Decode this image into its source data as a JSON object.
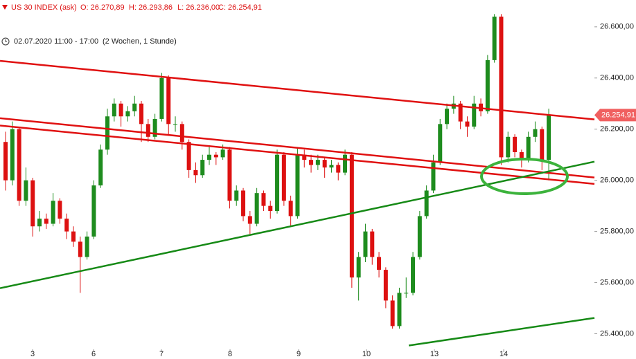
{
  "chart_data": {
    "type": "candlestick",
    "header": {
      "symbol": "US 30 INDEX (ask)",
      "open": "O: 26.270,89",
      "high": "H: 26.293,86",
      "low": "L: 26.236,00",
      "close": "C: 26.254,91"
    },
    "period": "02.07.2020 11:00 - 17:00",
    "range": "(2 Wochen, 1 Stunde)",
    "up_color": "#1e8c1e",
    "down_color": "#dd1111",
    "xlim": [
      -0.82,
      86.73
    ],
    "ylim": [
      25350,
      26705
    ],
    "xticks": [
      {
        "value": 3.98,
        "label": "3"
      },
      {
        "value": 12.96,
        "label": "6"
      },
      {
        "value": 22.96,
        "label": "7"
      },
      {
        "value": 33.06,
        "label": "8"
      },
      {
        "value": 43.16,
        "label": "9"
      },
      {
        "value": 53.16,
        "label": "10"
      },
      {
        "value": 63.16,
        "label": "13"
      },
      {
        "value": 73.37,
        "label": "14"
      }
    ],
    "yticks": [
      {
        "value": 26600,
        "label": "26.600,00"
      },
      {
        "value": 26400,
        "label": "26.400,00"
      },
      {
        "value": 26200,
        "label": "26.200,00"
      },
      {
        "value": 26000,
        "label": "26.000,00"
      },
      {
        "value": 25800,
        "label": "25.800,00"
      },
      {
        "value": 25600,
        "label": "25.600,00"
      },
      {
        "value": 25400,
        "label": "25.400,00"
      }
    ],
    "last_price": {
      "value": 26254.91,
      "label": "26.254,91"
    },
    "candles": [
      [
        26150,
        26190,
        25960,
        26000
      ],
      [
        26000,
        26230,
        25980,
        26200
      ],
      [
        26200,
        26210,
        25900,
        25920
      ],
      [
        25920,
        26050,
        25900,
        26000
      ],
      [
        26000,
        26010,
        25780,
        25820
      ],
      [
        25820,
        25880,
        25800,
        25850
      ],
      [
        25850,
        25870,
        25810,
        25830
      ],
      [
        25830,
        25950,
        25820,
        25920
      ],
      [
        25920,
        25930,
        25830,
        25850
      ],
      [
        25850,
        25870,
        25770,
        25800
      ],
      [
        25800,
        25820,
        25740,
        25760
      ],
      [
        25760,
        25780,
        25560,
        25700
      ],
      [
        25700,
        25800,
        25690,
        25780
      ],
      [
        25780,
        26000,
        25770,
        25980
      ],
      [
        25980,
        26140,
        25970,
        26120
      ],
      [
        26120,
        26280,
        26100,
        26250
      ],
      [
        26250,
        26320,
        26230,
        26300
      ],
      [
        26300,
        26310,
        26210,
        26250
      ],
      [
        26250,
        26290,
        26230,
        26270
      ],
      [
        26270,
        26330,
        26250,
        26300
      ],
      [
        26300,
        26310,
        26150,
        26220
      ],
      [
        26220,
        26240,
        26150,
        26170
      ],
      [
        26170,
        26260,
        26160,
        26240
      ],
      [
        26240,
        26420,
        26230,
        26400
      ],
      [
        26400,
        26410,
        26180,
        26220
      ],
      [
        26220,
        26250,
        26190,
        26220
      ],
      [
        26220,
        26230,
        26120,
        26150
      ],
      [
        26150,
        26160,
        26010,
        26040
      ],
      [
        26040,
        26070,
        25990,
        26020
      ],
      [
        26020,
        26100,
        26010,
        26080
      ],
      [
        26080,
        26130,
        26060,
        26100
      ],
      [
        26100,
        26110,
        26060,
        26090
      ],
      [
        26090,
        26140,
        26080,
        26120
      ],
      [
        26120,
        26130,
        25890,
        25920
      ],
      [
        25920,
        25980,
        25900,
        25960
      ],
      [
        25960,
        25970,
        25840,
        25860
      ],
      [
        25860,
        25880,
        25790,
        25830
      ],
      [
        25830,
        25970,
        25820,
        25950
      ],
      [
        25950,
        25960,
        25880,
        25900
      ],
      [
        25900,
        25920,
        25850,
        25880
      ],
      [
        25880,
        26120,
        25870,
        26100
      ],
      [
        26100,
        26110,
        25900,
        25920
      ],
      [
        25920,
        25940,
        25820,
        25860
      ],
      [
        25860,
        26130,
        25850,
        26100
      ],
      [
        26100,
        26120,
        26050,
        26080
      ],
      [
        26080,
        26100,
        26030,
        26060
      ],
      [
        26060,
        26100,
        26040,
        26080
      ],
      [
        26080,
        26090,
        26010,
        26050
      ],
      [
        26050,
        26080,
        26030,
        26060
      ],
      [
        26060,
        26070,
        26000,
        26030
      ],
      [
        26030,
        26120,
        26020,
        26100
      ],
      [
        26100,
        26110,
        25580,
        25620
      ],
      [
        25620,
        25720,
        25530,
        25700
      ],
      [
        25700,
        25830,
        25680,
        25800
      ],
      [
        25800,
        25810,
        25670,
        25700
      ],
      [
        25700,
        25720,
        25620,
        25650
      ],
      [
        25650,
        25660,
        25500,
        25530
      ],
      [
        25530,
        25550,
        25420,
        25430
      ],
      [
        25430,
        25580,
        25420,
        25560
      ],
      [
        25560,
        25620,
        25540,
        25560
      ],
      [
        25560,
        25720,
        25550,
        25700
      ],
      [
        25700,
        25880,
        25690,
        25860
      ],
      [
        25860,
        25980,
        25850,
        25960
      ],
      [
        25960,
        26100,
        25950,
        26070
      ],
      [
        26070,
        26240,
        26060,
        26220
      ],
      [
        26220,
        26300,
        26200,
        26280
      ],
      [
        26280,
        26330,
        26260,
        26300
      ],
      [
        26300,
        26310,
        26200,
        26230
      ],
      [
        26230,
        26250,
        26170,
        26210
      ],
      [
        26210,
        26330,
        26200,
        26300
      ],
      [
        26300,
        26320,
        26250,
        26270
      ],
      [
        26270,
        26490,
        26260,
        26470
      ],
      [
        26470,
        26650,
        26460,
        26640
      ],
      [
        26640,
        26650,
        26060,
        26090
      ],
      [
        26090,
        26190,
        26070,
        26170
      ],
      [
        26170,
        26180,
        26090,
        26110
      ],
      [
        26110,
        26120,
        26050,
        26080
      ],
      [
        26080,
        26190,
        26070,
        26170
      ],
      [
        26170,
        26230,
        26150,
        26200
      ],
      [
        26200,
        26210,
        26040,
        26080
      ],
      [
        26080,
        26280,
        26000,
        26255
      ]
    ],
    "trend_lines": [
      {
        "color": "#e01010",
        "x": [
          -0.82,
          86.73
        ],
        "values": [
          26467,
          26238
        ]
      },
      {
        "color": "#e01010",
        "x": [
          -0.82,
          86.73
        ],
        "values": [
          26243,
          26011
        ]
      },
      {
        "color": "#e01010",
        "x": [
          -0.82,
          86.73
        ],
        "values": [
          26214,
          25986
        ]
      },
      {
        "color": "#168a16",
        "x": [
          -0.82,
          86.73
        ],
        "values": [
          25578,
          26073
        ]
      },
      {
        "color": "#168a16",
        "x": [
          59.39,
          86.73
        ],
        "values": [
          25354,
          25462
        ]
      }
    ]
  }
}
